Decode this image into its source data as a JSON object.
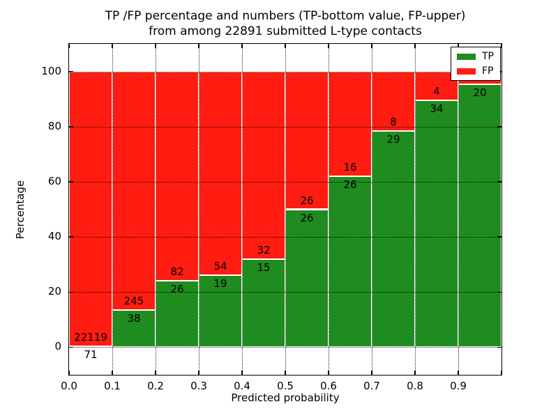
{
  "figure": {
    "title_line1": "TP /FP percentage and numbers (TP-bottom value, FP-upper)",
    "title_line2": "from among 22891 submitted L-type contacts"
  },
  "axes": {
    "xlabel": "Predicted probability",
    "ylabel": "Percentage",
    "xlim": [
      0.0,
      1.0
    ],
    "ylim": [
      -10,
      110
    ],
    "yticks": [
      0,
      20,
      40,
      60,
      80,
      100
    ],
    "xticks": [
      {
        "value": 0.0,
        "label": "0.0"
      },
      {
        "value": 0.1,
        "label": "0.1"
      },
      {
        "value": 0.2,
        "label": "0.2"
      },
      {
        "value": 0.3,
        "label": "0.3"
      },
      {
        "value": 0.4,
        "label": "0.4"
      },
      {
        "value": 0.5,
        "label": "0.5"
      },
      {
        "value": 0.6,
        "label": "0.6"
      },
      {
        "value": 0.7,
        "label": "0.7"
      },
      {
        "value": 0.8,
        "label": "0.8"
      },
      {
        "value": 0.9,
        "label": "0.9"
      },
      {
        "value": 1.0,
        "label": ""
      }
    ]
  },
  "legend": {
    "position": "upper-right",
    "items": [
      {
        "label": "TP",
        "color": "#1e8c1e"
      },
      {
        "label": "FP",
        "color": "#ff1c11"
      }
    ]
  },
  "chart_data": {
    "type": "bar",
    "stacked": true,
    "normalized_to_percent": true,
    "title": "TP /FP percentage and numbers (TP-bottom value, FP-upper) from among 22891 submitted L-type contacts",
    "xlabel": "Predicted probability",
    "ylabel": "Percentage",
    "total_contacts": 22891,
    "bin_width": 0.1,
    "colors": {
      "tp": "#1e8c1e",
      "fp": "#ff1c11"
    },
    "grid": true,
    "legend_position": "upper-right",
    "bins": [
      {
        "x0": 0.0,
        "x1": 0.1,
        "tp": 71,
        "fp": 22119,
        "tp_label": "71",
        "fp_label": "22119"
      },
      {
        "x0": 0.1,
        "x1": 0.2,
        "tp": 38,
        "fp": 245,
        "tp_label": "38",
        "fp_label": "245"
      },
      {
        "x0": 0.2,
        "x1": 0.3,
        "tp": 26,
        "fp": 82,
        "tp_label": "26",
        "fp_label": "82"
      },
      {
        "x0": 0.3,
        "x1": 0.4,
        "tp": 19,
        "fp": 54,
        "tp_label": "19",
        "fp_label": "54"
      },
      {
        "x0": 0.4,
        "x1": 0.5,
        "tp": 15,
        "fp": 32,
        "tp_label": "15",
        "fp_label": "32"
      },
      {
        "x0": 0.5,
        "x1": 0.6,
        "tp": 26,
        "fp": 26,
        "tp_label": "26",
        "fp_label": "26"
      },
      {
        "x0": 0.6,
        "x1": 0.7,
        "tp": 26,
        "fp": 16,
        "tp_label": "26",
        "fp_label": "16"
      },
      {
        "x0": 0.7,
        "x1": 0.8,
        "tp": 29,
        "fp": 8,
        "tp_label": "29",
        "fp_label": "8"
      },
      {
        "x0": 0.8,
        "x1": 0.9,
        "tp": 34,
        "fp": 4,
        "tp_label": "34",
        "fp_label": "4"
      },
      {
        "x0": 0.9,
        "x1": 1.0,
        "tp": 20,
        "fp": 1,
        "tp_label": "20",
        "fp_label": ""
      }
    ]
  }
}
